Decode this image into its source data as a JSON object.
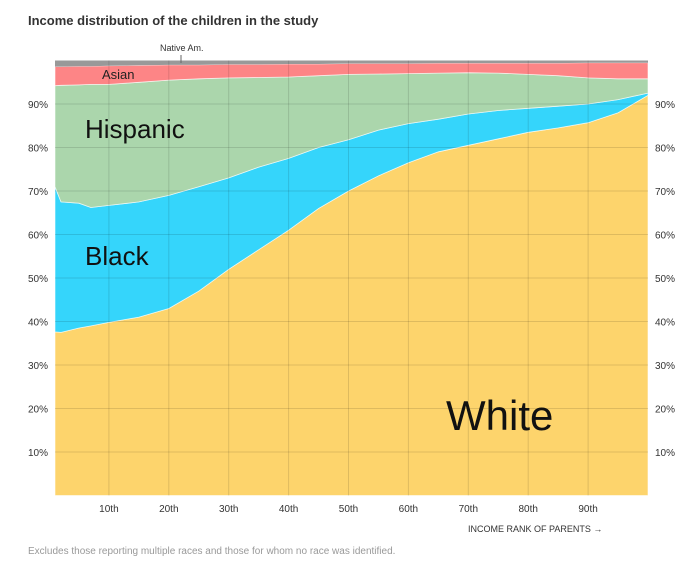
{
  "chart_data": {
    "type": "area",
    "stacked": true,
    "title": "Income distribution of the children in the study",
    "xlabel": "INCOME RANK OF PARENTS →",
    "ylabel": "",
    "note": "Excludes those reporting multiple races and those for whom no race was identified.",
    "xlim": [
      1,
      100
    ],
    "ylim": [
      0,
      100
    ],
    "grid": true,
    "x_ticks": [
      10,
      20,
      30,
      40,
      50,
      60,
      70,
      80,
      90
    ],
    "x_tick_labels": [
      "10th",
      "20th",
      "30th",
      "40th",
      "50th",
      "60th",
      "70th",
      "80th",
      "90th"
    ],
    "y_ticks": [
      10,
      20,
      30,
      40,
      50,
      60,
      70,
      80,
      90
    ],
    "y_tick_labels": [
      "10%",
      "20%",
      "30%",
      "40%",
      "50%",
      "60%",
      "70%",
      "80%",
      "90%"
    ],
    "x": [
      1,
      2,
      5,
      7,
      10,
      15,
      20,
      25,
      30,
      35,
      40,
      45,
      50,
      55,
      60,
      65,
      70,
      75,
      80,
      85,
      90,
      95,
      100
    ],
    "series": [
      {
        "name": "White",
        "color": "#fdd46c",
        "values": [
          37.6,
          37.5,
          38.5,
          39,
          39.8,
          41,
          43,
          47,
          52,
          56.5,
          61,
          66,
          70,
          73.5,
          76.5,
          79,
          80.5,
          82,
          83.5,
          84.5,
          85.7,
          88,
          92
        ]
      },
      {
        "name": "Black",
        "color": "#35d5fb",
        "values": [
          33.4,
          30,
          28.7,
          27.2,
          26.9,
          26.5,
          26,
          24,
          21,
          19,
          16.5,
          14,
          11.8,
          10.5,
          9,
          7.5,
          7.2,
          6.5,
          5.5,
          5,
          4.3,
          3,
          0.5
        ]
      },
      {
        "name": "Hispanic",
        "color": "#abd6ac",
        "values": [
          23.2,
          26.8,
          27.2,
          28.3,
          27.8,
          27.5,
          26.5,
          24.8,
          23,
          20.6,
          18.7,
          16.5,
          15,
          12.9,
          11.5,
          10.6,
          9.5,
          8.6,
          7.8,
          7,
          6,
          4.8,
          3.3
        ]
      },
      {
        "name": "Asian",
        "color": "#fd8586",
        "values": [
          4.4,
          4.3,
          4.3,
          4.2,
          4.3,
          3.9,
          3.5,
          3.2,
          3.1,
          3.0,
          3.0,
          2.7,
          2.5,
          2.4,
          2.3,
          2.3,
          2.2,
          2.3,
          2.6,
          2.9,
          3.5,
          3.7,
          3.7
        ]
      },
      {
        "name": "Native Am.",
        "color": "#999999",
        "values": [
          1.4,
          1.4,
          1.3,
          1.3,
          1.2,
          1.1,
          1,
          1,
          0.9,
          0.9,
          0.8,
          0.8,
          0.7,
          0.7,
          0.7,
          0.6,
          0.6,
          0.6,
          0.6,
          0.6,
          0.5,
          0.5,
          0.5
        ]
      }
    ]
  }
}
